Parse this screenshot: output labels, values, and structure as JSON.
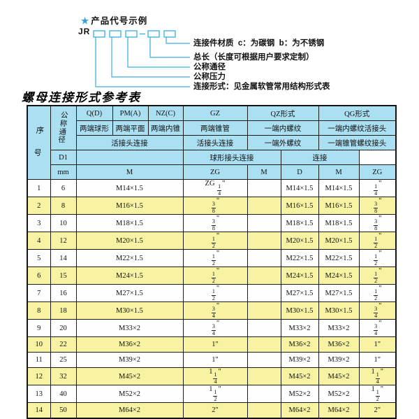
{
  "diagram": {
    "star": "★",
    "title": "产品代号示例",
    "code_prefix": "JR",
    "line_color": "#35aee0",
    "labels": [
      "连接件材质  c：为碳钢  b：为不锈钢",
      "总长（长度可根据用户要求定制）",
      "公称通径",
      "公称压力",
      "连接形式：见金属软管常用结构形式表"
    ]
  },
  "table": {
    "title": "螺母连接形式参考表",
    "colors": {
      "header_bg": "#abdff2",
      "alt_row_bg": "#f7f3a2",
      "border": "#1c1c1c",
      "diagram_accent": "#35aee0"
    },
    "header": {
      "seq": "序号",
      "dn": "公称通径",
      "d1": "D1",
      "mm": "mm",
      "q": "Q(D)",
      "q_sub": "两端球形",
      "pm": "PM(A)",
      "pm_sub": "两端平面",
      "nz": "NZ(C)",
      "nz_sub": "两端内锥",
      "union_conn": "活接头连接",
      "gz": "GZ",
      "gz_sub": "两端锥管",
      "gz_conn": "活接头连接",
      "qz": "QZ形式",
      "qz_sub1": "一端内螺纹",
      "qz_sub2": "一端外螺纹",
      "qz_sub3": "球形接头连接",
      "qg": "QG形式",
      "qg_sub1": "一端内螺纹活接头",
      "qg_sub2": "一端锥管螺纹接头",
      "qg_sub3": "连接",
      "m": "M",
      "zg": "ZG",
      "d": "D"
    },
    "rows": [
      {
        "seq": "1",
        "dn": "6",
        "m": "M14×1.5",
        "gz": "ZG ¼\"",
        "qz_m": "",
        "qz_d": "M14×1.5",
        "qg_m": "M14×1.5",
        "qg_zg": "¼\""
      },
      {
        "seq": "2",
        "dn": "8",
        "m": "M16×1.5",
        "gz": "⅜\"",
        "qz_m": "",
        "qz_d": "M16×1.5",
        "qg_m": "M16×1.5",
        "qg_zg": "⅜\""
      },
      {
        "seq": "3",
        "dn": "10",
        "m": "M18×1.5",
        "gz": "⅜\"",
        "qz_m": "",
        "qz_d": "M18×1.5",
        "qg_m": "M18×1.5",
        "qg_zg": "⅜\""
      },
      {
        "seq": "4",
        "dn": "12",
        "m": "M20×1.5",
        "gz": "½\"",
        "qz_m": "",
        "qz_d": "M20×1.5",
        "qg_m": "M20×1.5",
        "qg_zg": "½\""
      },
      {
        "seq": "5",
        "dn": "14",
        "m": "M22×1.5",
        "gz": "½\"",
        "qz_m": "",
        "qz_d": "M22×1.5",
        "qg_m": "M22×1.5",
        "qg_zg": "½\""
      },
      {
        "seq": "6",
        "dn": "15",
        "m": "M24×1.5",
        "gz": "½\"",
        "qz_m": "",
        "qz_d": "M24×1.5",
        "qg_m": "M24×1.5",
        "qg_zg": "½\""
      },
      {
        "seq": "7",
        "dn": "16",
        "m": "M27×1.5",
        "gz": "½\"",
        "qz_m": "",
        "qz_d": "M27×1.5",
        "qg_m": "M27×1.5",
        "qg_zg": "½\""
      },
      {
        "seq": "8",
        "dn": "18",
        "m": "M30×1.5",
        "gz": "¾\"",
        "qz_m": "",
        "qz_d": "M30×1.5",
        "qg_m": "M30×1.5",
        "qg_zg": "¾\""
      },
      {
        "seq": "9",
        "dn": "20",
        "m": "M33×2",
        "gz": "¾\"",
        "qz_m": "",
        "qz_d": "M33×2",
        "qg_m": "M33×2",
        "qg_zg": "¾\""
      },
      {
        "seq": "10",
        "dn": "22",
        "m": "M36×2",
        "gz": "1\"",
        "qz_m": "",
        "qz_d": "M36×2",
        "qg_m": "M36×2",
        "qg_zg": "1\""
      },
      {
        "seq": "11",
        "dn": "25",
        "m": "M39×2",
        "gz": "1\"",
        "qz_m": "",
        "qz_d": "M39×2",
        "qg_m": "M39×2",
        "qg_zg": "1\""
      },
      {
        "seq": "12",
        "dn": "32",
        "m": "M45×2",
        "gz": "1¼\"",
        "qz_m": "",
        "qz_d": "M45×2",
        "qg_m": "M45×2",
        "qg_zg": "1¼\""
      },
      {
        "seq": "13",
        "dn": "40",
        "m": "M52×2",
        "gz": "1½\"",
        "qz_m": "",
        "qz_d": "M52×2",
        "qg_m": "M52×2",
        "qg_zg": "1½\""
      },
      {
        "seq": "14",
        "dn": "50",
        "m": "M64×2",
        "gz": "2\"",
        "qz_m": "",
        "qz_d": "M64×2",
        "qg_m": "M64×2",
        "qg_zg": "2\""
      }
    ]
  }
}
